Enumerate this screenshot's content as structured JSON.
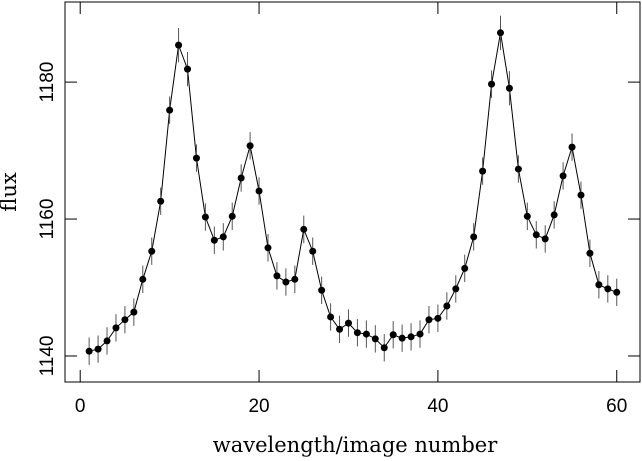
{
  "chart_data": {
    "type": "line",
    "xlabel": "wavelength/image number",
    "ylabel": "flux",
    "x": [
      1,
      2,
      3,
      4,
      5,
      6,
      7,
      8,
      9,
      10,
      11,
      12,
      13,
      14,
      15,
      16,
      17,
      18,
      19,
      20,
      21,
      22,
      23,
      24,
      25,
      26,
      27,
      28,
      29,
      30,
      31,
      32,
      33,
      34,
      35,
      36,
      37,
      38,
      39,
      40,
      41,
      42,
      43,
      44,
      45,
      46,
      47,
      48,
      49,
      50,
      51,
      52,
      53,
      54,
      55,
      56,
      57,
      58,
      59,
      60
    ],
    "series": [
      {
        "color": "#000000",
        "values": [
          1140.7,
          1141.0,
          1142.2,
          1144.1,
          1145.3,
          1146.4,
          1151.2,
          1155.3,
          1162.6,
          1175.9,
          1185.4,
          1181.9,
          1168.9,
          1160.3,
          1156.9,
          1157.4,
          1160.4,
          1166.0,
          1170.7,
          1164.1,
          1155.8,
          1151.7,
          1150.8,
          1151.2,
          1158.5,
          1155.3,
          1149.6,
          1145.7,
          1143.9,
          1144.8,
          1143.4,
          1143.2,
          1142.5,
          1141.2,
          1143.1,
          1142.6,
          1142.8,
          1143.2,
          1145.3,
          1145.5,
          1147.3,
          1149.8,
          1152.8,
          1157.4,
          1167.0,
          1179.7,
          1187.2,
          1179.1,
          1167.3,
          1160.4,
          1157.7,
          1157.1,
          1160.6,
          1166.3,
          1170.5,
          1163.5,
          1155.0,
          1150.4,
          1149.8,
          1149.3
        ],
        "errors": [
          2,
          2,
          2,
          2,
          2,
          2,
          2,
          2,
          2,
          2,
          2.5,
          2.5,
          2,
          2,
          2,
          2,
          2,
          2,
          2,
          2,
          2,
          2,
          2,
          2,
          2,
          2,
          2,
          2,
          2,
          2,
          2,
          2,
          2,
          2,
          2,
          2,
          2,
          2,
          2,
          2,
          2,
          2,
          2,
          2,
          2,
          2,
          2.5,
          2.5,
          2,
          2,
          2,
          2,
          2,
          2,
          2,
          2,
          2,
          2,
          2,
          2
        ]
      }
    ],
    "xlim": [
      -1.7,
      62.6
    ],
    "xticks": [
      0,
      20,
      40,
      60
    ],
    "ylim": [
      1136.2,
      1191.7
    ],
    "yticks": [
      1140,
      1160,
      1180
    ]
  }
}
